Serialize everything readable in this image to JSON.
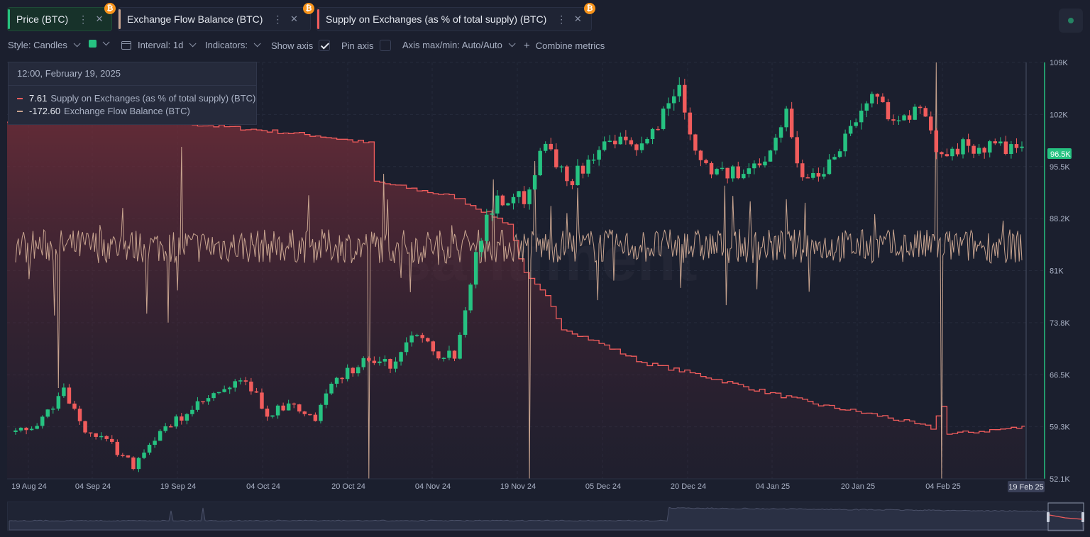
{
  "tabs": [
    {
      "label": "Price (BTC)",
      "accent": "#26c281"
    },
    {
      "label": "Exchange Flow Balance (BTC)",
      "accent": "#c8a48f"
    },
    {
      "label": "Supply on Exchanges (as % of total supply) (BTC)",
      "accent": "#f15c5c"
    }
  ],
  "tab_icons": {
    "more": "⋮",
    "close": "✕",
    "coin": "₿"
  },
  "toolbar": {
    "style": "Style: Candles",
    "interval": "Interval: 1d",
    "indicators": "Indicators:",
    "show_axis": "Show axis",
    "show_axis_checked": true,
    "pin_axis": "Pin axis",
    "pin_axis_checked": false,
    "axis_minmax": "Axis max/min: Auto/Auto",
    "combine": "Combine metrics"
  },
  "tooltip": {
    "date": "12:00, February 19, 2025",
    "rows": [
      {
        "value": "7.61",
        "name": "Supply on Exchanges (as % of total supply) (BTC)",
        "color": "#f15c5c"
      },
      {
        "value": "-172.60",
        "name": "Exchange Flow Balance (BTC)",
        "color": "#c8a48f"
      }
    ]
  },
  "watermark": "santiment",
  "colors": {
    "up": "#26c281",
    "down": "#f15c5c",
    "flow": "#c8a48f",
    "supply": "#f15c5c",
    "bg": "#1b1f2e"
  },
  "chart_data": {
    "type": "line",
    "y_axis": {
      "ticks": [
        "109K",
        "102K",
        "95.5K",
        "88.2K",
        "81K",
        "73.8K",
        "66.5K",
        "59.3K",
        "52.1K"
      ],
      "range": [
        52100,
        109000
      ],
      "current_label": "96.5K"
    },
    "x_axis": {
      "ticks": [
        "19 Aug 24",
        "04 Sep 24",
        "19 Sep 24",
        "04 Oct 24",
        "20 Oct 24",
        "04 Nov 24",
        "19 Nov 24",
        "05 Dec 24",
        "20 Dec 24",
        "04 Jan 25",
        "20 Jan 25",
        "04 Feb 25"
      ],
      "current_label": "19 Feb 25"
    },
    "price_candles": {
      "name": "Price (BTC)",
      "anchors": [
        [
          "2024-08-15",
          58500
        ],
        [
          "2024-08-19",
          59300
        ],
        [
          "2024-08-24",
          64100
        ],
        [
          "2024-08-27",
          59500
        ],
        [
          "2024-09-01",
          57300
        ],
        [
          "2024-09-06",
          54000
        ],
        [
          "2024-09-09",
          57000
        ],
        [
          "2024-09-14",
          60000
        ],
        [
          "2024-09-20",
          63000
        ],
        [
          "2024-09-27",
          65500
        ],
        [
          "2024-10-01",
          61000
        ],
        [
          "2024-10-05",
          62000
        ],
        [
          "2024-10-10",
          60200
        ],
        [
          "2024-10-14",
          66000
        ],
        [
          "2024-10-20",
          68500
        ],
        [
          "2024-10-24",
          67500
        ],
        [
          "2024-10-29",
          72500
        ],
        [
          "2024-11-02",
          69300
        ],
        [
          "2024-11-05",
          69000
        ],
        [
          "2024-11-07",
          76000
        ],
        [
          "2024-11-11",
          88500
        ],
        [
          "2024-11-13",
          90000
        ],
        [
          "2024-11-18",
          90500
        ],
        [
          "2024-11-22",
          98500
        ],
        [
          "2024-11-26",
          92500
        ],
        [
          "2024-12-01",
          96500
        ],
        [
          "2024-12-05",
          98000
        ],
        [
          "2024-12-10",
          97000
        ],
        [
          "2024-12-17",
          106000
        ],
        [
          "2024-12-20",
          97000
        ],
        [
          "2024-12-24",
          94000
        ],
        [
          "2024-12-29",
          93500
        ],
        [
          "2025-01-02",
          96500
        ],
        [
          "2025-01-06",
          102000
        ],
        [
          "2025-01-09",
          93000
        ],
        [
          "2025-01-13",
          94500
        ],
        [
          "2025-01-20",
          102500
        ],
        [
          "2025-01-22",
          104500
        ],
        [
          "2025-01-27",
          101000
        ],
        [
          "2025-01-31",
          102500
        ],
        [
          "2025-02-03",
          97000
        ],
        [
          "2025-02-06",
          97500
        ],
        [
          "2025-02-10",
          97200
        ],
        [
          "2025-02-15",
          97500
        ],
        [
          "2025-02-19",
          96500
        ]
      ]
    },
    "supply_on_exchanges": {
      "name": "Supply on Exchanges (as % of total supply) (BTC)",
      "anchors": [
        [
          "2024-08-15",
          11.6
        ],
        [
          "2024-09-08",
          11.6
        ],
        [
          "2024-09-25",
          11.5
        ],
        [
          "2024-10-10",
          11.4
        ],
        [
          "2024-10-20",
          11.3
        ],
        [
          "2024-10-21",
          10.8
        ],
        [
          "2024-11-05",
          10.6
        ],
        [
          "2024-11-15",
          10.25
        ],
        [
          "2024-11-18",
          9.6
        ],
        [
          "2024-11-22",
          9.3
        ],
        [
          "2024-11-25",
          8.9
        ],
        [
          "2024-12-02",
          8.7
        ],
        [
          "2024-12-10",
          8.45
        ],
        [
          "2024-12-20",
          8.3
        ],
        [
          "2024-12-31",
          8.1
        ],
        [
          "2025-01-12",
          7.9
        ],
        [
          "2025-01-24",
          7.75
        ],
        [
          "2025-02-02",
          7.6
        ],
        [
          "2025-02-04",
          7.9
        ],
        [
          "2025-02-05",
          7.52
        ],
        [
          "2025-02-19",
          7.61
        ]
      ]
    },
    "exchange_flow_balance": {
      "name": "Exchange Flow Balance (BTC)",
      "baseline_label": "0",
      "notable_spikes": [
        [
          "2024-08-23",
          -5000
        ],
        [
          "2024-09-15",
          3500
        ],
        [
          "2024-10-20",
          -10500
        ],
        [
          "2024-11-19",
          -12500
        ],
        [
          "2024-11-20",
          3000
        ],
        [
          "2025-02-03",
          9500
        ],
        [
          "2025-02-04",
          -9000
        ]
      ]
    }
  }
}
